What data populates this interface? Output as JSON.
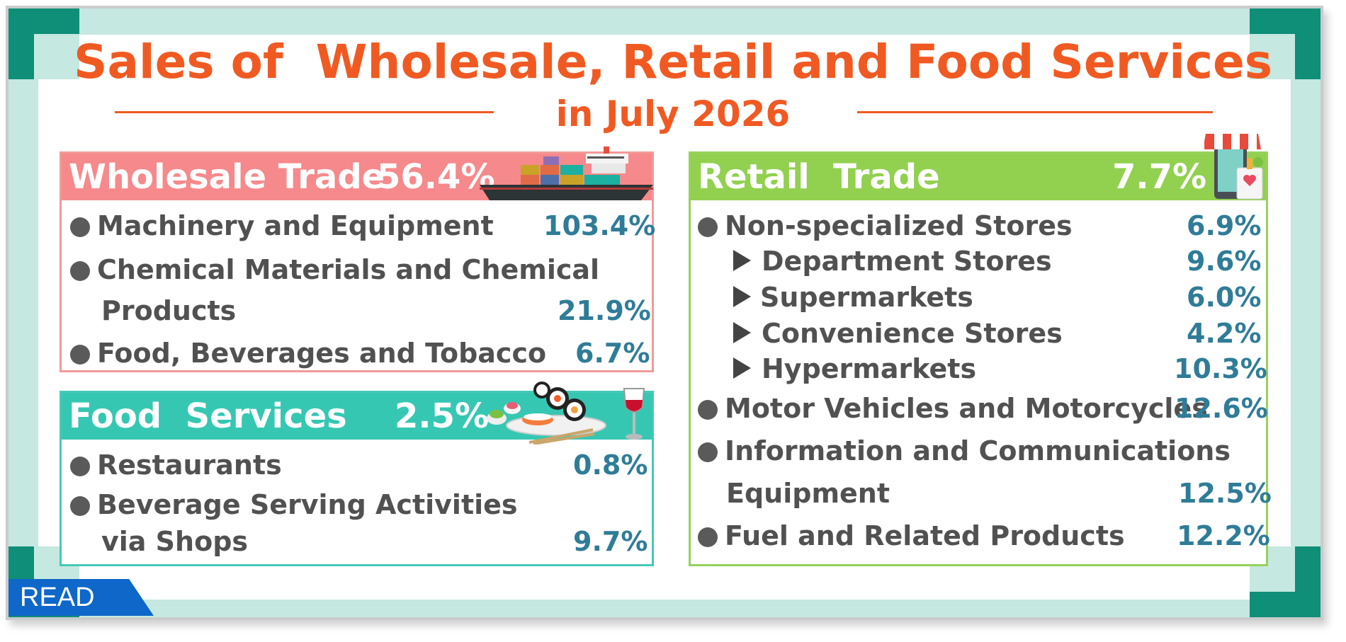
{
  "title": "Sales of  Wholesale, Retail and Food Services",
  "subtitle": "in July 2026",
  "wholesale": {
    "label": "Wholesale Trade",
    "value": "56.4%",
    "items": [
      {
        "label": "Machinery and Equipment",
        "value": "103.4%"
      },
      {
        "label": "Chemical Materials and Chemical",
        "label2": "Products",
        "value": "21.9%"
      },
      {
        "label": "Food, Beverages and Tobacco",
        "value": "6.7%"
      }
    ]
  },
  "food": {
    "label": "Food  Services",
    "value": "2.5%",
    "items": [
      {
        "label": "Restaurants",
        "value": "0.8%"
      },
      {
        "label": "Beverage Serving Activities",
        "label2": "via Shops",
        "value": "9.7%"
      }
    ]
  },
  "retail": {
    "label": "Retail  Trade",
    "value": "7.7%",
    "items": [
      {
        "label": "Non-specialized Stores",
        "value": "6.9%"
      },
      {
        "label": "Department Stores",
        "value": "9.6%"
      },
      {
        "label": "Supermarkets",
        "value": "6.0%"
      },
      {
        "label": "Convenience Stores",
        "value": "4.2%"
      },
      {
        "label": "Hypermarkets",
        "value": "10.3%"
      },
      {
        "label": "Motor Vehicles and Motorcycles",
        "value": "12.6%"
      },
      {
        "label": "Information and Communications",
        "label2": "Equipment",
        "value": "12.5%"
      },
      {
        "label": "Fuel and Related Products",
        "value": "12.2%"
      }
    ]
  },
  "read_label": "READ",
  "colors": {
    "title": "#f05a22",
    "wholesale": "#f6898b",
    "food": "#36c7b3",
    "retail": "#92d050",
    "value_text": "#2f7c98",
    "frame": "#0f8e78"
  },
  "icons": [
    "cargo-ship-icon",
    "sushi-platter-icon",
    "wine-glass-icon",
    "shop-phone-icon"
  ]
}
